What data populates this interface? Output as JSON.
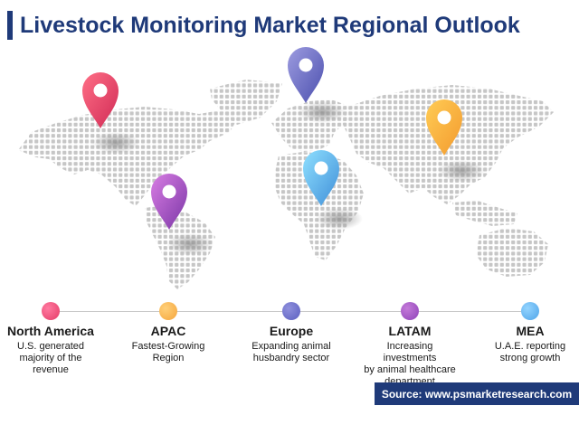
{
  "title": "Livestock Monitoring Market Regional Outlook",
  "regions": [
    {
      "name": "North America",
      "description": "U.S. generated\nmajority of the\nrevenue",
      "color": "#e53b67"
    },
    {
      "name": "APAC",
      "description": "Fastest-Growing\nRegion",
      "color": "#f5a53b"
    },
    {
      "name": "Europe",
      "description": "Expanding animal\nhusbandry sector",
      "color": "#5b5fbf"
    },
    {
      "name": "LATAM",
      "description": "Increasing\ninvestments\nby animal healthcare\ndepartment",
      "color": "#8e42b8"
    },
    {
      "name": "MEA",
      "description": "U.A.E. reporting\nstrong growth",
      "color": "#4fa4e8"
    }
  ],
  "source": "Source: www.psmarketresearch.com",
  "colors": {
    "title": "#1f3a79",
    "map_dots": "#c6c6c6",
    "timeline": "#c8c8c8"
  },
  "map_icons": [
    "north-america-pin-icon",
    "europe-pin-icon",
    "apac-pin-icon",
    "mea-pin-icon",
    "latam-pin-icon"
  ]
}
